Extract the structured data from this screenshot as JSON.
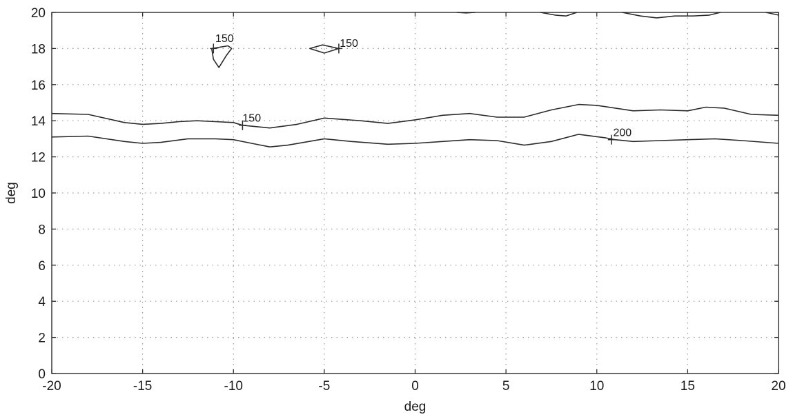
{
  "chart_data": {
    "type": "line",
    "title": "",
    "xlabel": "deg",
    "ylabel": "deg",
    "xlim": [
      -20,
      20
    ],
    "ylim": [
      0,
      20
    ],
    "xticks": [
      -20,
      -15,
      -10,
      -5,
      0,
      5,
      10,
      15,
      20
    ],
    "yticks": [
      0,
      2,
      4,
      6,
      8,
      10,
      12,
      14,
      16,
      18,
      20
    ],
    "xtick_labels": [
      "-20",
      "-15",
      "-10",
      "-5",
      "0",
      "5",
      "10",
      "15",
      "20"
    ],
    "ytick_labels": [
      "0",
      "2",
      "4",
      "6",
      "8",
      "10",
      "12",
      "14",
      "16",
      "18",
      "20"
    ],
    "grid": true,
    "series": [
      {
        "level": "150",
        "points": [
          [
            -20,
            14.4
          ],
          [
            -18,
            14.35
          ],
          [
            -16,
            13.9
          ],
          [
            -15,
            13.8
          ],
          [
            -14,
            13.85
          ],
          [
            -13,
            13.95
          ],
          [
            -12,
            14.0
          ],
          [
            -11,
            13.95
          ],
          [
            -10,
            13.9
          ],
          [
            -9.5,
            13.75
          ],
          [
            -8,
            13.6
          ],
          [
            -6.5,
            13.8
          ],
          [
            -5,
            14.15
          ],
          [
            -3,
            14.0
          ],
          [
            -1.5,
            13.85
          ],
          [
            0,
            14.05
          ],
          [
            1.5,
            14.3
          ],
          [
            3,
            14.4
          ],
          [
            4.5,
            14.2
          ],
          [
            6,
            14.2
          ],
          [
            7.5,
            14.6
          ],
          [
            9,
            14.9
          ],
          [
            10,
            14.85
          ],
          [
            12,
            14.55
          ],
          [
            13.5,
            14.6
          ],
          [
            15,
            14.55
          ],
          [
            16,
            14.75
          ],
          [
            17,
            14.7
          ],
          [
            18.5,
            14.35
          ],
          [
            20,
            14.3
          ]
        ]
      },
      {
        "level": "200",
        "points": [
          [
            -20,
            13.1
          ],
          [
            -18,
            13.15
          ],
          [
            -16,
            12.85
          ],
          [
            -15,
            12.75
          ],
          [
            -14,
            12.8
          ],
          [
            -12.5,
            13.0
          ],
          [
            -11,
            13.0
          ],
          [
            -10,
            12.95
          ],
          [
            -9,
            12.75
          ],
          [
            -8,
            12.55
          ],
          [
            -7,
            12.65
          ],
          [
            -5,
            13.0
          ],
          [
            -3.5,
            12.85
          ],
          [
            -1.5,
            12.7
          ],
          [
            0,
            12.75
          ],
          [
            1.5,
            12.85
          ],
          [
            3,
            12.95
          ],
          [
            4.5,
            12.9
          ],
          [
            6,
            12.65
          ],
          [
            7.5,
            12.85
          ],
          [
            9,
            13.25
          ],
          [
            10.5,
            13.05
          ],
          [
            11,
            12.95
          ],
          [
            12,
            12.85
          ],
          [
            13.5,
            12.9
          ],
          [
            15,
            12.95
          ],
          [
            16.5,
            13.0
          ],
          [
            18,
            12.9
          ],
          [
            20,
            12.75
          ]
        ]
      },
      {
        "level": "150",
        "closed": true,
        "points": [
          [
            -11.2,
            18.0
          ],
          [
            -10.3,
            18.15
          ],
          [
            -10.1,
            18.0
          ],
          [
            -10.4,
            17.6
          ],
          [
            -10.8,
            16.95
          ],
          [
            -11.1,
            17.4
          ]
        ]
      },
      {
        "level": "150",
        "closed": true,
        "points": [
          [
            -5.8,
            18.0
          ],
          [
            -5.1,
            18.2
          ],
          [
            -4.2,
            18.0
          ],
          [
            -5.0,
            17.75
          ]
        ]
      },
      {
        "level": "",
        "points": [
          [
            2.3,
            20.0
          ],
          [
            2.8,
            19.97
          ],
          [
            3.3,
            20.0
          ]
        ]
      },
      {
        "level": "",
        "points": [
          [
            6.9,
            20.0
          ],
          [
            7.7,
            19.85
          ],
          [
            8.3,
            19.8
          ],
          [
            8.9,
            20.0
          ]
        ]
      },
      {
        "level": "",
        "points": [
          [
            11.4,
            20.0
          ],
          [
            12.4,
            19.8
          ],
          [
            13.3,
            19.7
          ],
          [
            14.3,
            19.8
          ],
          [
            15.3,
            19.8
          ],
          [
            16.2,
            19.85
          ],
          [
            16.8,
            20.0
          ]
        ]
      },
      {
        "level": "",
        "points": [
          [
            19.3,
            20.0
          ],
          [
            20.0,
            19.85
          ]
        ]
      }
    ],
    "contour_labels": [
      {
        "text": "150",
        "x": -11.1,
        "y": 18.0,
        "dx": 0.1,
        "dy": 0.35
      },
      {
        "text": "150",
        "x": -4.2,
        "y": 18.0,
        "dx": 0.05,
        "dy": 0.1
      },
      {
        "text": "150",
        "x": -9.5,
        "y": 13.75,
        "dx": 0.0,
        "dy": 0.2
      },
      {
        "text": "200",
        "x": 10.8,
        "y": 12.95,
        "dx": 0.1,
        "dy": 0.2
      }
    ]
  }
}
